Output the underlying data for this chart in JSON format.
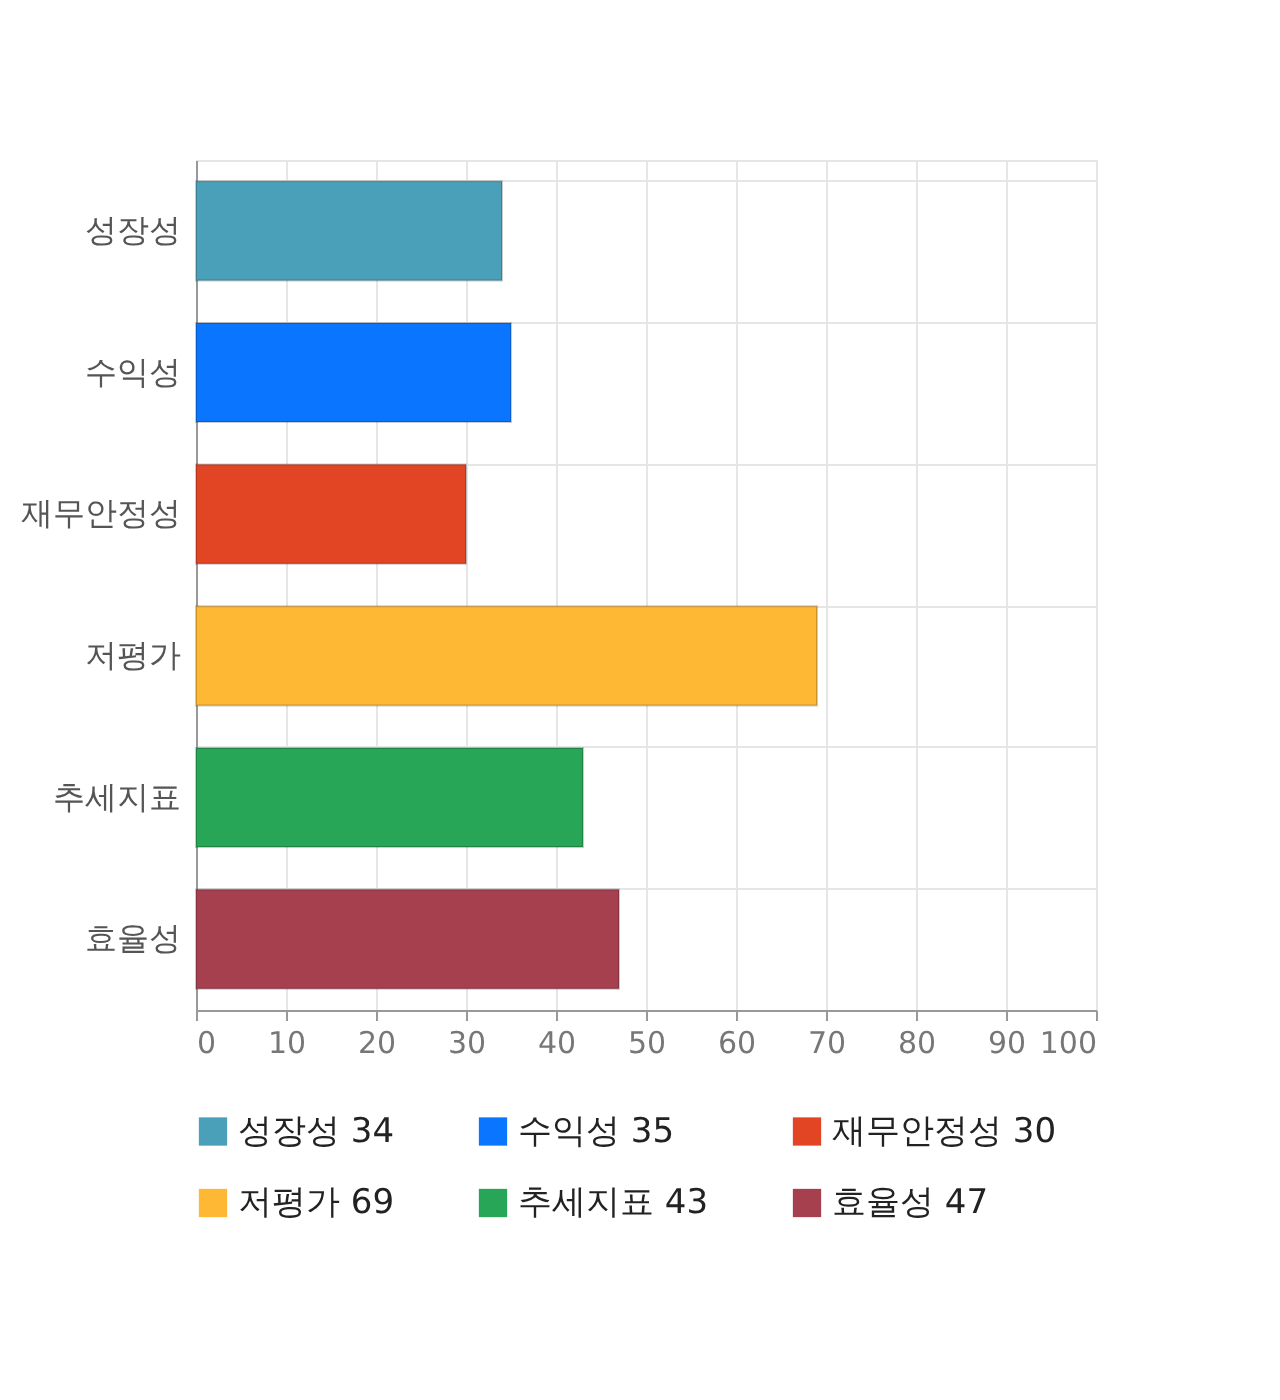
{
  "chart_data": {
    "type": "bar",
    "orientation": "horizontal",
    "categories": [
      "성장성",
      "수익성",
      "재무안정성",
      "저평가",
      "추세지표",
      "효율성"
    ],
    "series": [
      {
        "name": "성장성 34",
        "color": "#4aa0b8",
        "values": [
          34,
          null,
          null,
          null,
          null,
          null
        ]
      },
      {
        "name": "수익성 35",
        "color": "#0a75ff",
        "values": [
          null,
          35,
          null,
          null,
          null,
          null
        ]
      },
      {
        "name": "재무안정성 30",
        "color": "#e24524",
        "values": [
          null,
          null,
          30,
          null,
          null,
          null
        ]
      },
      {
        "name": "저평가 69",
        "color": "#ffb833",
        "values": [
          null,
          null,
          null,
          69,
          null,
          null
        ]
      },
      {
        "name": "추세지표 43",
        "color": "#28a657",
        "values": [
          null,
          null,
          null,
          null,
          43,
          null
        ]
      },
      {
        "name": "효율성 47",
        "color": "#a6404e",
        "values": [
          null,
          null,
          null,
          null,
          null,
          47
        ]
      }
    ],
    "xlim": [
      0,
      100
    ],
    "xticks": [
      0,
      10,
      20,
      30,
      40,
      50,
      60,
      70,
      80,
      90,
      100
    ],
    "grid": true,
    "legend": "bottom"
  }
}
